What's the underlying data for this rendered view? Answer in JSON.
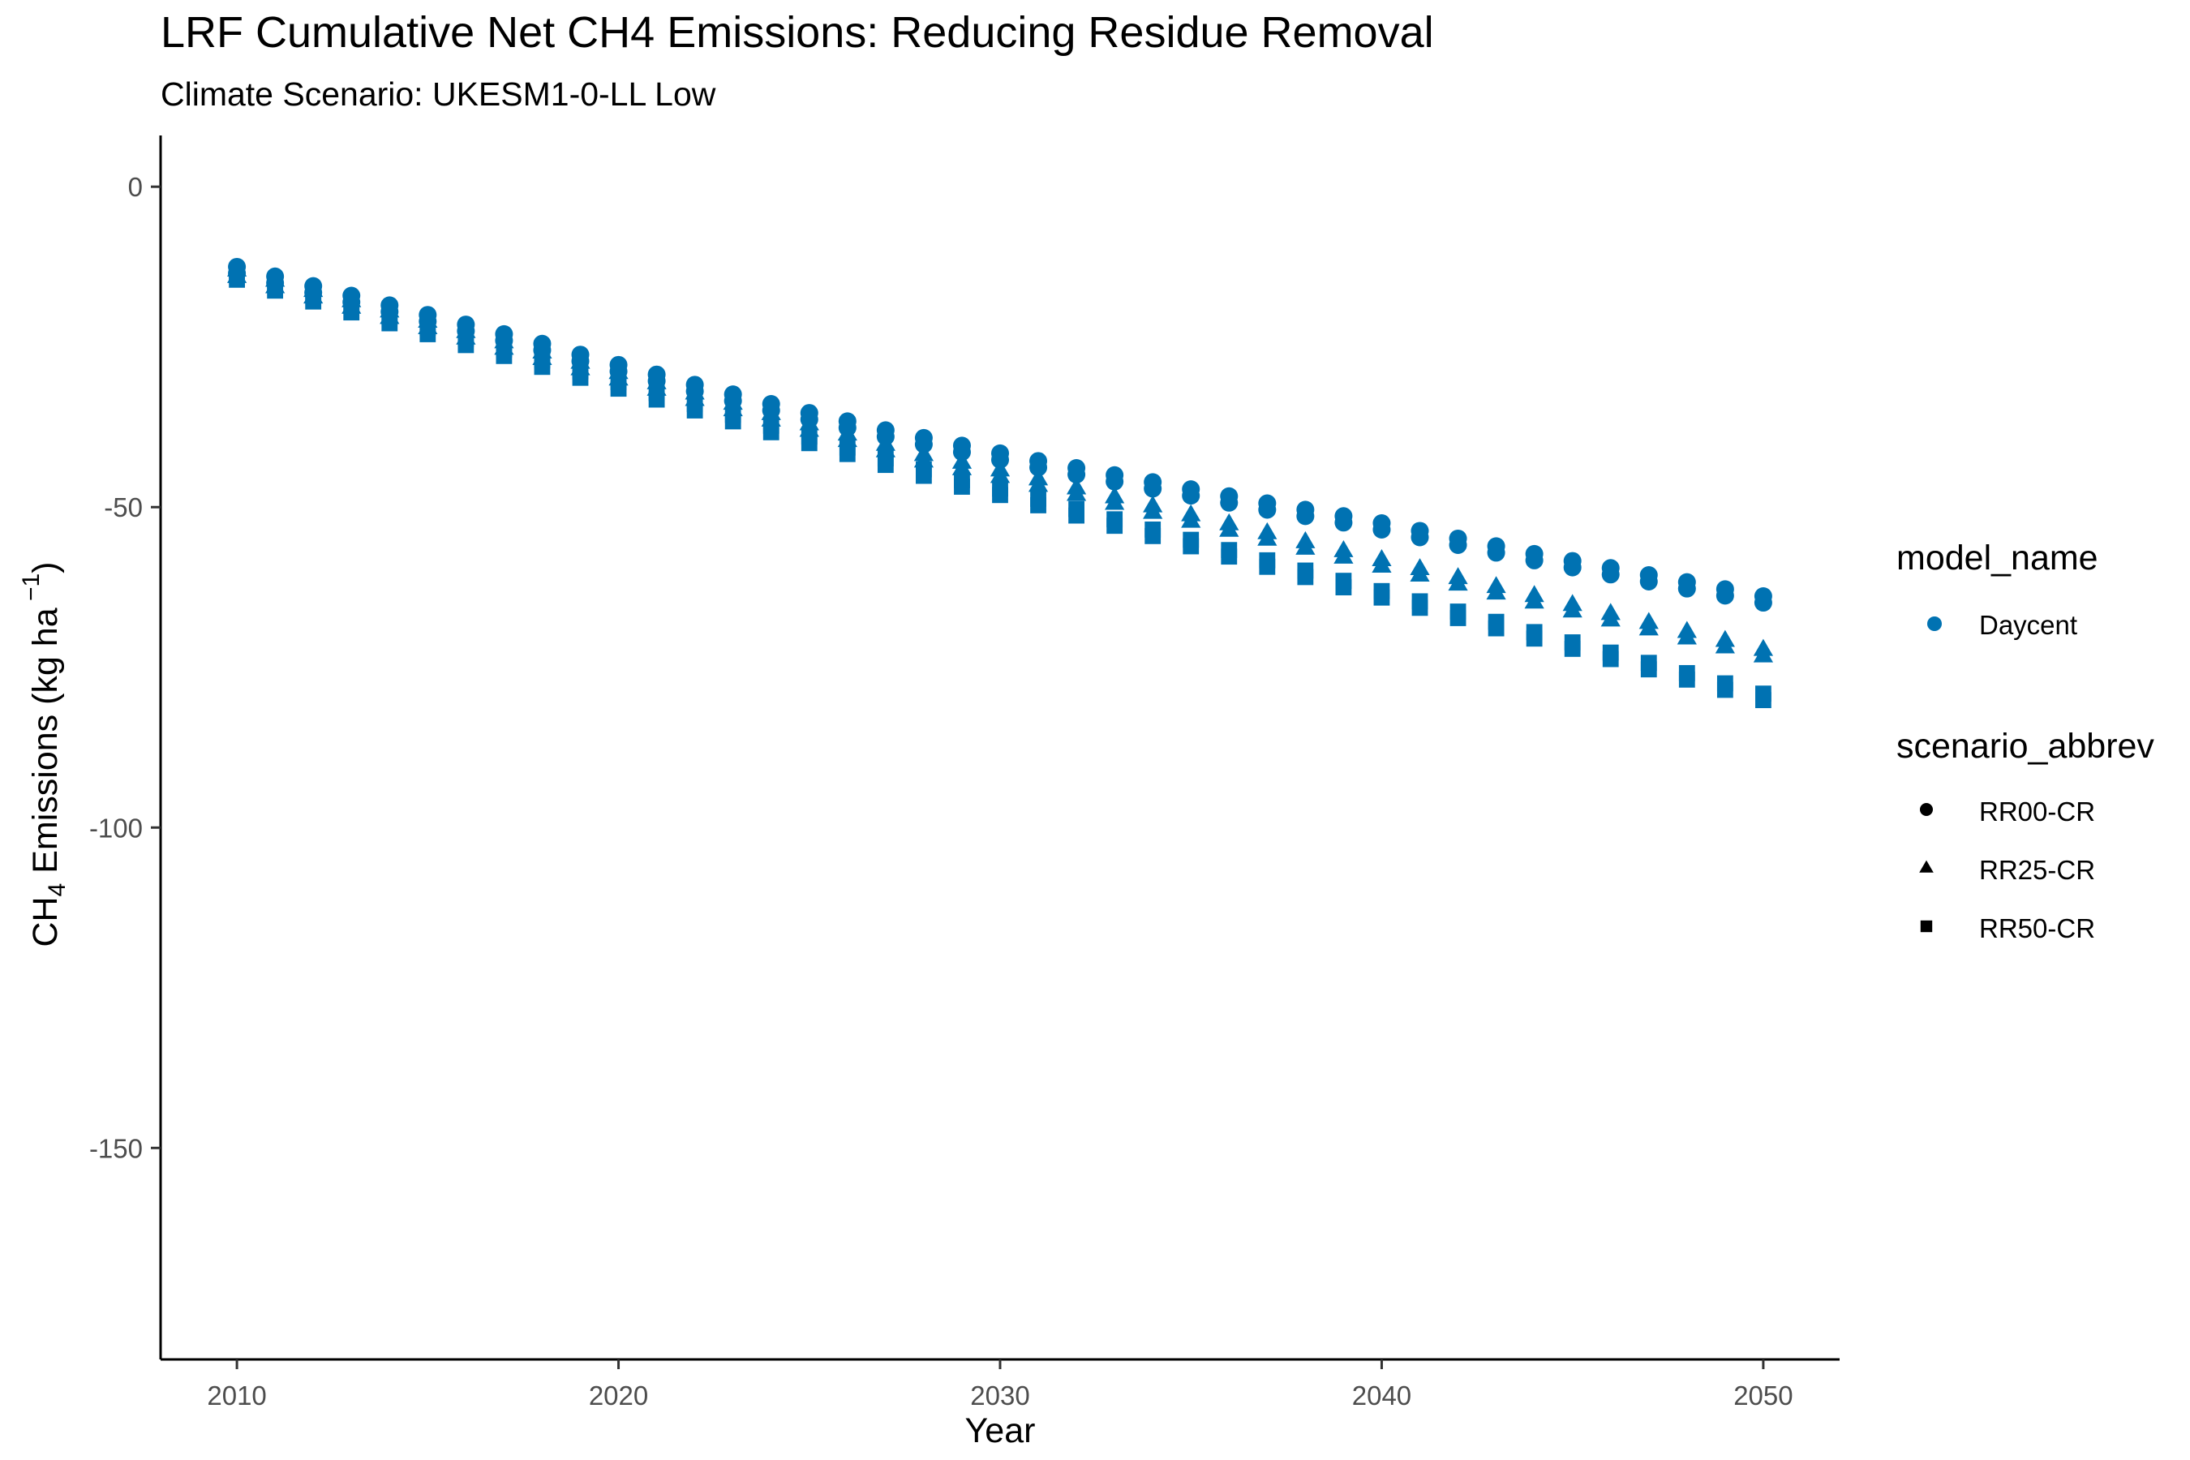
{
  "chart_data": {
    "type": "scatter",
    "title": "LRF  Cumulative Net CH4 Emissions: Reducing Residue Removal",
    "subtitle": "Climate Scenario: UKESM1-0-LL Low",
    "xlabel": "Year",
    "ylabel_main": "CH",
    "ylabel_sub": "4",
    "ylabel_mid": " Emissions (kg ha",
    "ylabel_sup": " −1",
    "ylabel_end": ")",
    "xlim": [
      2008,
      2052
    ],
    "ylim": [
      -183,
      8
    ],
    "x_ticks": [
      2010,
      2020,
      2030,
      2040,
      2050
    ],
    "x_tick_labels": [
      "2010",
      "2020",
      "2030",
      "2040",
      "2050"
    ],
    "y_ticks": [
      0,
      -50,
      -100,
      -150
    ],
    "y_tick_labels": [
      "0",
      "-50",
      "-100",
      "-150"
    ],
    "grid": false,
    "color": "#0072B2",
    "x": [
      2010,
      2011,
      2012,
      2013,
      2014,
      2015,
      2016,
      2017,
      2018,
      2019,
      2020,
      2021,
      2022,
      2023,
      2024,
      2025,
      2026,
      2027,
      2028,
      2029,
      2030,
      2031,
      2032,
      2033,
      2034,
      2035,
      2036,
      2037,
      2038,
      2039,
      2040,
      2041,
      2042,
      2043,
      2044,
      2045,
      2046,
      2047,
      2048,
      2049,
      2050
    ],
    "series": [
      {
        "name": "RR00-CR",
        "shape": "circle",
        "values": [
          -12.5,
          -14,
          -15.5,
          -17,
          -18.5,
          -20,
          -21.5,
          -23,
          -24.5,
          -26.2,
          -27.8,
          -29.3,
          -30.9,
          -32.4,
          -33.9,
          -35.3,
          -36.6,
          -38,
          -39.2,
          -40.4,
          -41.6,
          -42.8,
          -43.9,
          -45,
          -46.1,
          -47.2,
          -48.3,
          -49.4,
          -50.4,
          -51.4,
          -52.5,
          -53.7,
          -54.9,
          -56.1,
          -57.3,
          -58.4,
          -59.5,
          -60.6,
          -61.7,
          -62.8,
          -63.9
        ]
      },
      {
        "name": "RR25-CR",
        "shape": "triangle",
        "values": [
          -13,
          -14.6,
          -16.2,
          -17.8,
          -19.4,
          -21,
          -22.6,
          -24.2,
          -25.8,
          -27.4,
          -29,
          -30.6,
          -32.2,
          -33.8,
          -35.4,
          -37,
          -38.6,
          -40.2,
          -41.8,
          -43,
          -44.2,
          -45.6,
          -47,
          -48.4,
          -49.8,
          -51.2,
          -52.6,
          -54,
          -55.4,
          -56.8,
          -58.2,
          -59.6,
          -61,
          -62.4,
          -63.8,
          -65.2,
          -66.6,
          -68,
          -69.4,
          -70.8,
          -72.2
        ]
      },
      {
        "name": "RR50-CR",
        "shape": "square",
        "values": [
          -13.5,
          -15.2,
          -16.9,
          -18.6,
          -20.3,
          -22,
          -23.7,
          -25.4,
          -27.1,
          -28.8,
          -30.5,
          -32.2,
          -33.9,
          -35.6,
          -37.3,
          -39,
          -40.7,
          -42.4,
          -44.1,
          -45.8,
          -47.1,
          -48.7,
          -50.3,
          -51.9,
          -53.5,
          -55.1,
          -56.7,
          -58.3,
          -59.9,
          -61.5,
          -63.1,
          -64.7,
          -66.3,
          -67.9,
          -69.5,
          -71.1,
          -72.7,
          -74.3,
          -75.9,
          -77.5,
          -79.1
        ]
      }
    ],
    "legend": {
      "placement": "right",
      "color_title": "model_name",
      "color_entries": [
        "Daycent"
      ],
      "shape_title": "scenario_abbrev",
      "shape_entries": [
        "RR00-CR",
        "RR25-CR",
        "RR50-CR"
      ]
    }
  }
}
